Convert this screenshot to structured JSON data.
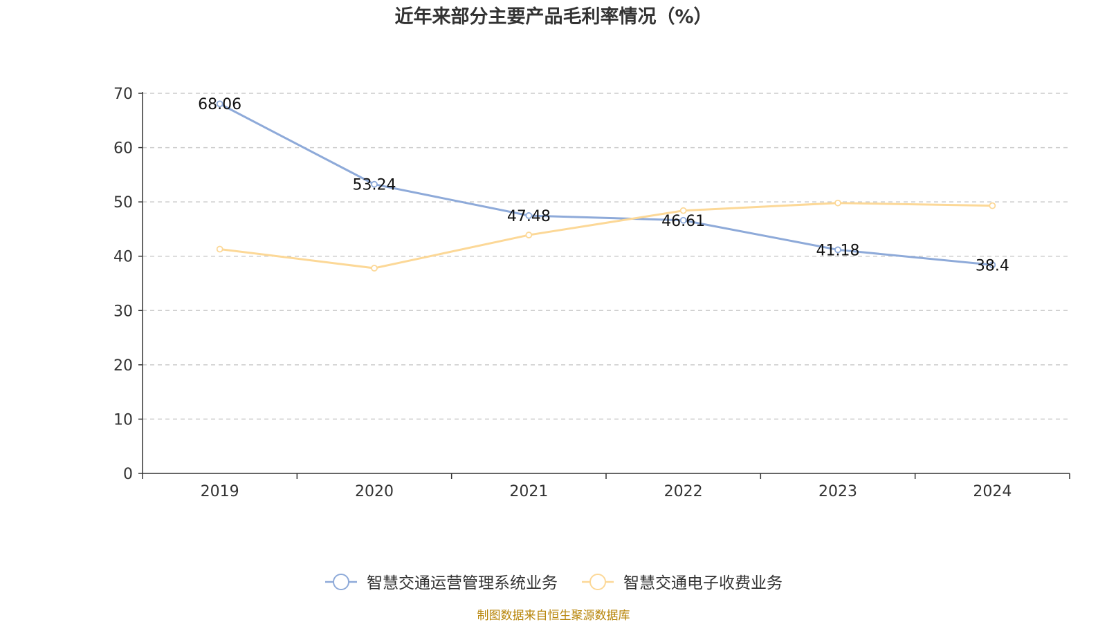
{
  "chart_data": {
    "type": "line",
    "title": "近年来部分主要产品毛利率情况（%）",
    "categories": [
      "2019",
      "2020",
      "2021",
      "2022",
      "2023",
      "2024"
    ],
    "ylim": [
      0,
      70
    ],
    "yticks": [
      0,
      10,
      20,
      30,
      40,
      50,
      60,
      70
    ],
    "grid": true,
    "legend_position": "bottom",
    "series": [
      {
        "name": "智慧交通运营管理系统业务",
        "values": [
          68.06,
          53.24,
          47.48,
          46.61,
          41.18,
          38.4
        ],
        "labels": [
          "68.06",
          "53.24",
          "47.48",
          "46.61",
          "41.18",
          "38.4"
        ],
        "color": "#8eaad9",
        "show_labels": true
      },
      {
        "name": "智慧交通电子收费业务",
        "values": [
          41.3,
          37.8,
          43.9,
          48.4,
          49.8,
          49.3
        ],
        "color": "#fcd897",
        "show_labels": false
      }
    ],
    "source": "制图数据来自恒生聚源数据库"
  }
}
